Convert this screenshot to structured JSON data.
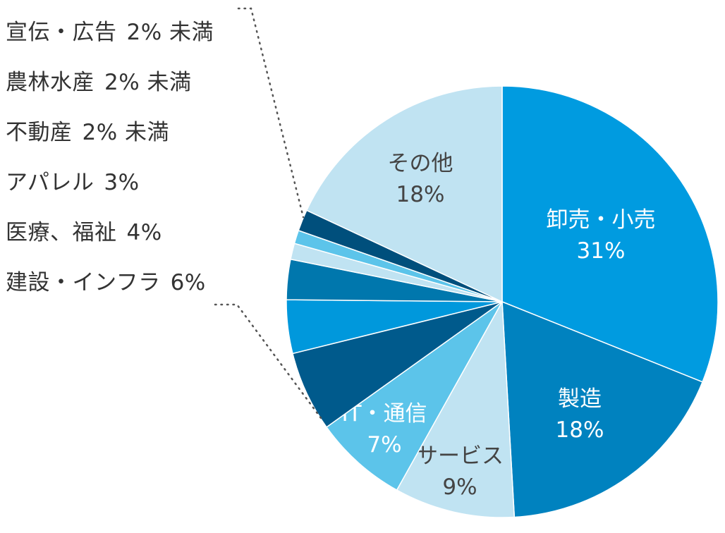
{
  "chart_data": {
    "type": "pie",
    "start": "top",
    "direction": "clockwise",
    "slices": [
      {
        "name": "卸売・小売",
        "value_label": "31%",
        "value": 31,
        "color": "#009be0",
        "label_color": "#ffffff"
      },
      {
        "name": "製造",
        "value_label": "18%",
        "value": 18,
        "color": "#0082bf",
        "label_color": "#ffffff"
      },
      {
        "name": "サービス",
        "value_label": "9%",
        "value": 9,
        "color": "#c0e3f2",
        "label_color": "#444444"
      },
      {
        "name": "IT・通信",
        "value_label": "7%",
        "value": 7,
        "color": "#5cc4ea",
        "label_color": "#ffffff"
      },
      {
        "name": "建設・インフラ",
        "value_label": "6%",
        "value": 6,
        "color": "#005a8c"
      },
      {
        "name": "医療、福祉",
        "value_label": "4%",
        "value": 4,
        "color": "#0098dc"
      },
      {
        "name": "アパレル",
        "value_label": "3%",
        "value": 3,
        "color": "#0077ad"
      },
      {
        "name": "不動産",
        "value_label": "2% 未満",
        "value": 1.2,
        "color": "#c0e3f2"
      },
      {
        "name": "農林水産",
        "value_label": "2% 未満",
        "value": 1.0,
        "color": "#5cc4ea"
      },
      {
        "name": "宣伝・広告",
        "value_label": "2% 未満",
        "value": 1.6,
        "color": "#004f7c"
      },
      {
        "name": "その他",
        "value_label": "18%",
        "value": 18,
        "color": "#c0e3f2",
        "label_color": "#444444"
      }
    ],
    "side_legend": [
      {
        "name": "宣伝・広告",
        "value_label": "2% 未満"
      },
      {
        "name": "農林水産",
        "value_label": "2% 未満"
      },
      {
        "name": "不動産",
        "value_label": "2% 未満"
      },
      {
        "name": "アパレル",
        "value_label": "3%"
      },
      {
        "name": "医療、福祉",
        "value_label": "4%"
      },
      {
        "name": "建設・インフラ",
        "value_label": "6%"
      }
    ]
  }
}
